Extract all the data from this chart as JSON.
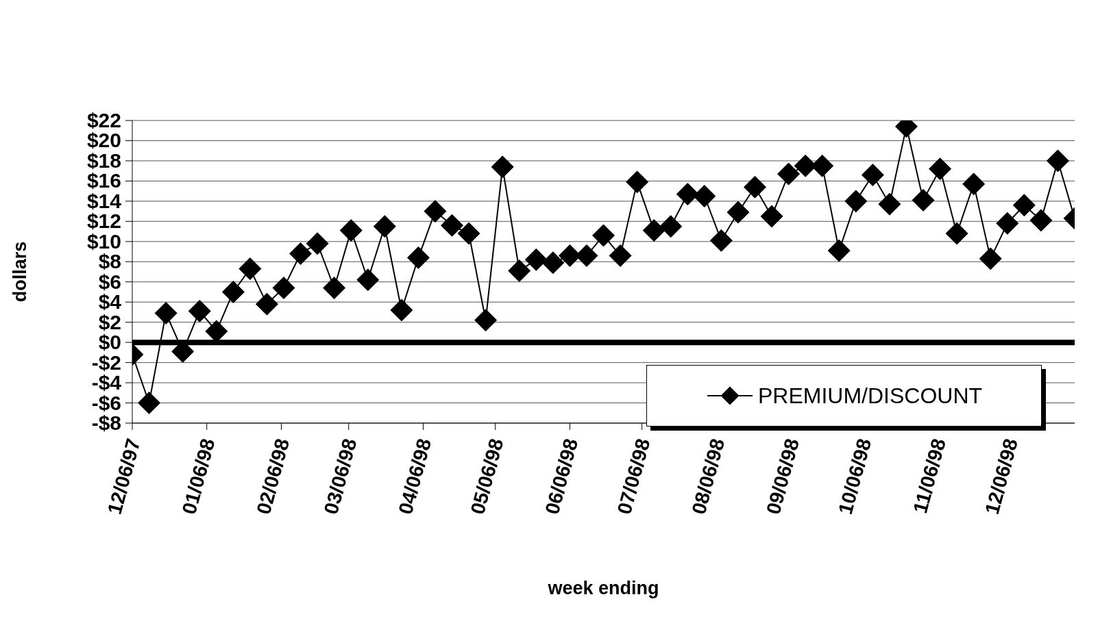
{
  "chart_data": {
    "type": "line",
    "xlabel": "week ending",
    "ylabel": "dollars",
    "x": [
      "1997-12-06",
      "1997-12-13",
      "1997-12-20",
      "1997-12-27",
      "1998-01-03",
      "1998-01-10",
      "1998-01-17",
      "1998-01-24",
      "1998-01-31",
      "1998-02-07",
      "1998-02-14",
      "1998-02-21",
      "1998-02-28",
      "1998-03-07",
      "1998-03-14",
      "1998-03-21",
      "1998-03-28",
      "1998-04-04",
      "1998-04-11",
      "1998-04-18",
      "1998-04-25",
      "1998-05-02",
      "1998-05-09",
      "1998-05-16",
      "1998-05-23",
      "1998-05-30",
      "1998-06-06",
      "1998-06-13",
      "1998-06-20",
      "1998-06-27",
      "1998-07-04",
      "1998-07-11",
      "1998-07-18",
      "1998-07-25",
      "1998-08-01",
      "1998-08-08",
      "1998-08-15",
      "1998-08-22",
      "1998-08-29",
      "1998-09-05",
      "1998-09-12",
      "1998-09-19",
      "1998-09-26",
      "1998-10-03",
      "1998-10-10",
      "1998-10-17",
      "1998-10-24",
      "1998-10-31",
      "1998-11-07",
      "1998-11-14",
      "1998-11-21",
      "1998-11-28",
      "1998-12-05",
      "1998-12-12",
      "1998-12-19",
      "1998-12-26",
      "1999-01-02"
    ],
    "series": [
      {
        "name": "PREMIUM/DISCOUNT",
        "color": "#000000",
        "values": [
          -1.2,
          -6.0,
          2.9,
          -0.9,
          3.1,
          1.1,
          5.0,
          7.3,
          3.8,
          5.4,
          8.8,
          9.8,
          5.4,
          11.1,
          6.2,
          11.5,
          3.2,
          8.4,
          13.0,
          11.6,
          10.8,
          2.2,
          17.4,
          7.1,
          8.2,
          7.9,
          8.6,
          8.6,
          10.6,
          8.6,
          15.9,
          11.1,
          11.5,
          14.7,
          14.5,
          10.1,
          12.9,
          15.4,
          12.5,
          16.7,
          17.5,
          17.5,
          9.1,
          14.0,
          16.6,
          13.7,
          21.4,
          14.1,
          17.2,
          10.8,
          15.7,
          8.3,
          11.8,
          13.6,
          12.1,
          18.0,
          12.3
        ]
      }
    ],
    "xlim": [
      "1997-12-06",
      "1999-01-02"
    ],
    "xticks": [
      {
        "value": "1997-12-06",
        "label": "12/06/97"
      },
      {
        "value": "1998-01-06",
        "label": "01/06/98"
      },
      {
        "value": "1998-02-06",
        "label": "02/06/98"
      },
      {
        "value": "1998-03-06",
        "label": "03/06/98"
      },
      {
        "value": "1998-04-06",
        "label": "04/06/98"
      },
      {
        "value": "1998-05-06",
        "label": "05/06/98"
      },
      {
        "value": "1998-06-06",
        "label": "06/06/98"
      },
      {
        "value": "1998-07-06",
        "label": "07/06/98"
      },
      {
        "value": "1998-08-06",
        "label": "08/06/98"
      },
      {
        "value": "1998-09-06",
        "label": "09/06/98"
      },
      {
        "value": "1998-10-06",
        "label": "10/06/98"
      },
      {
        "value": "1998-11-06",
        "label": "11/06/98"
      },
      {
        "value": "1998-12-06",
        "label": "12/06/98"
      }
    ],
    "ylim": [
      -8,
      22
    ],
    "yticks": [
      {
        "value": -8,
        "label": "-$8"
      },
      {
        "value": -6,
        "label": "-$6"
      },
      {
        "value": -4,
        "label": "-$4"
      },
      {
        "value": -2,
        "label": "-$2"
      },
      {
        "value": 0,
        "label": "$0"
      },
      {
        "value": 2,
        "label": "$2"
      },
      {
        "value": 4,
        "label": "$4"
      },
      {
        "value": 6,
        "label": "$6"
      },
      {
        "value": 8,
        "label": "$8"
      },
      {
        "value": 10,
        "label": "$10"
      },
      {
        "value": 12,
        "label": "$12"
      },
      {
        "value": 14,
        "label": "$14"
      },
      {
        "value": 16,
        "label": "$16"
      },
      {
        "value": 18,
        "label": "$18"
      },
      {
        "value": 20,
        "label": "$20"
      },
      {
        "value": 22,
        "label": "$22"
      }
    ],
    "ref_lines": [
      {
        "axis": "y",
        "value": 0,
        "color": "#000000"
      }
    ],
    "grid": "y",
    "legend": "bottom right",
    "marker": "diamond",
    "line_style": "solid"
  }
}
